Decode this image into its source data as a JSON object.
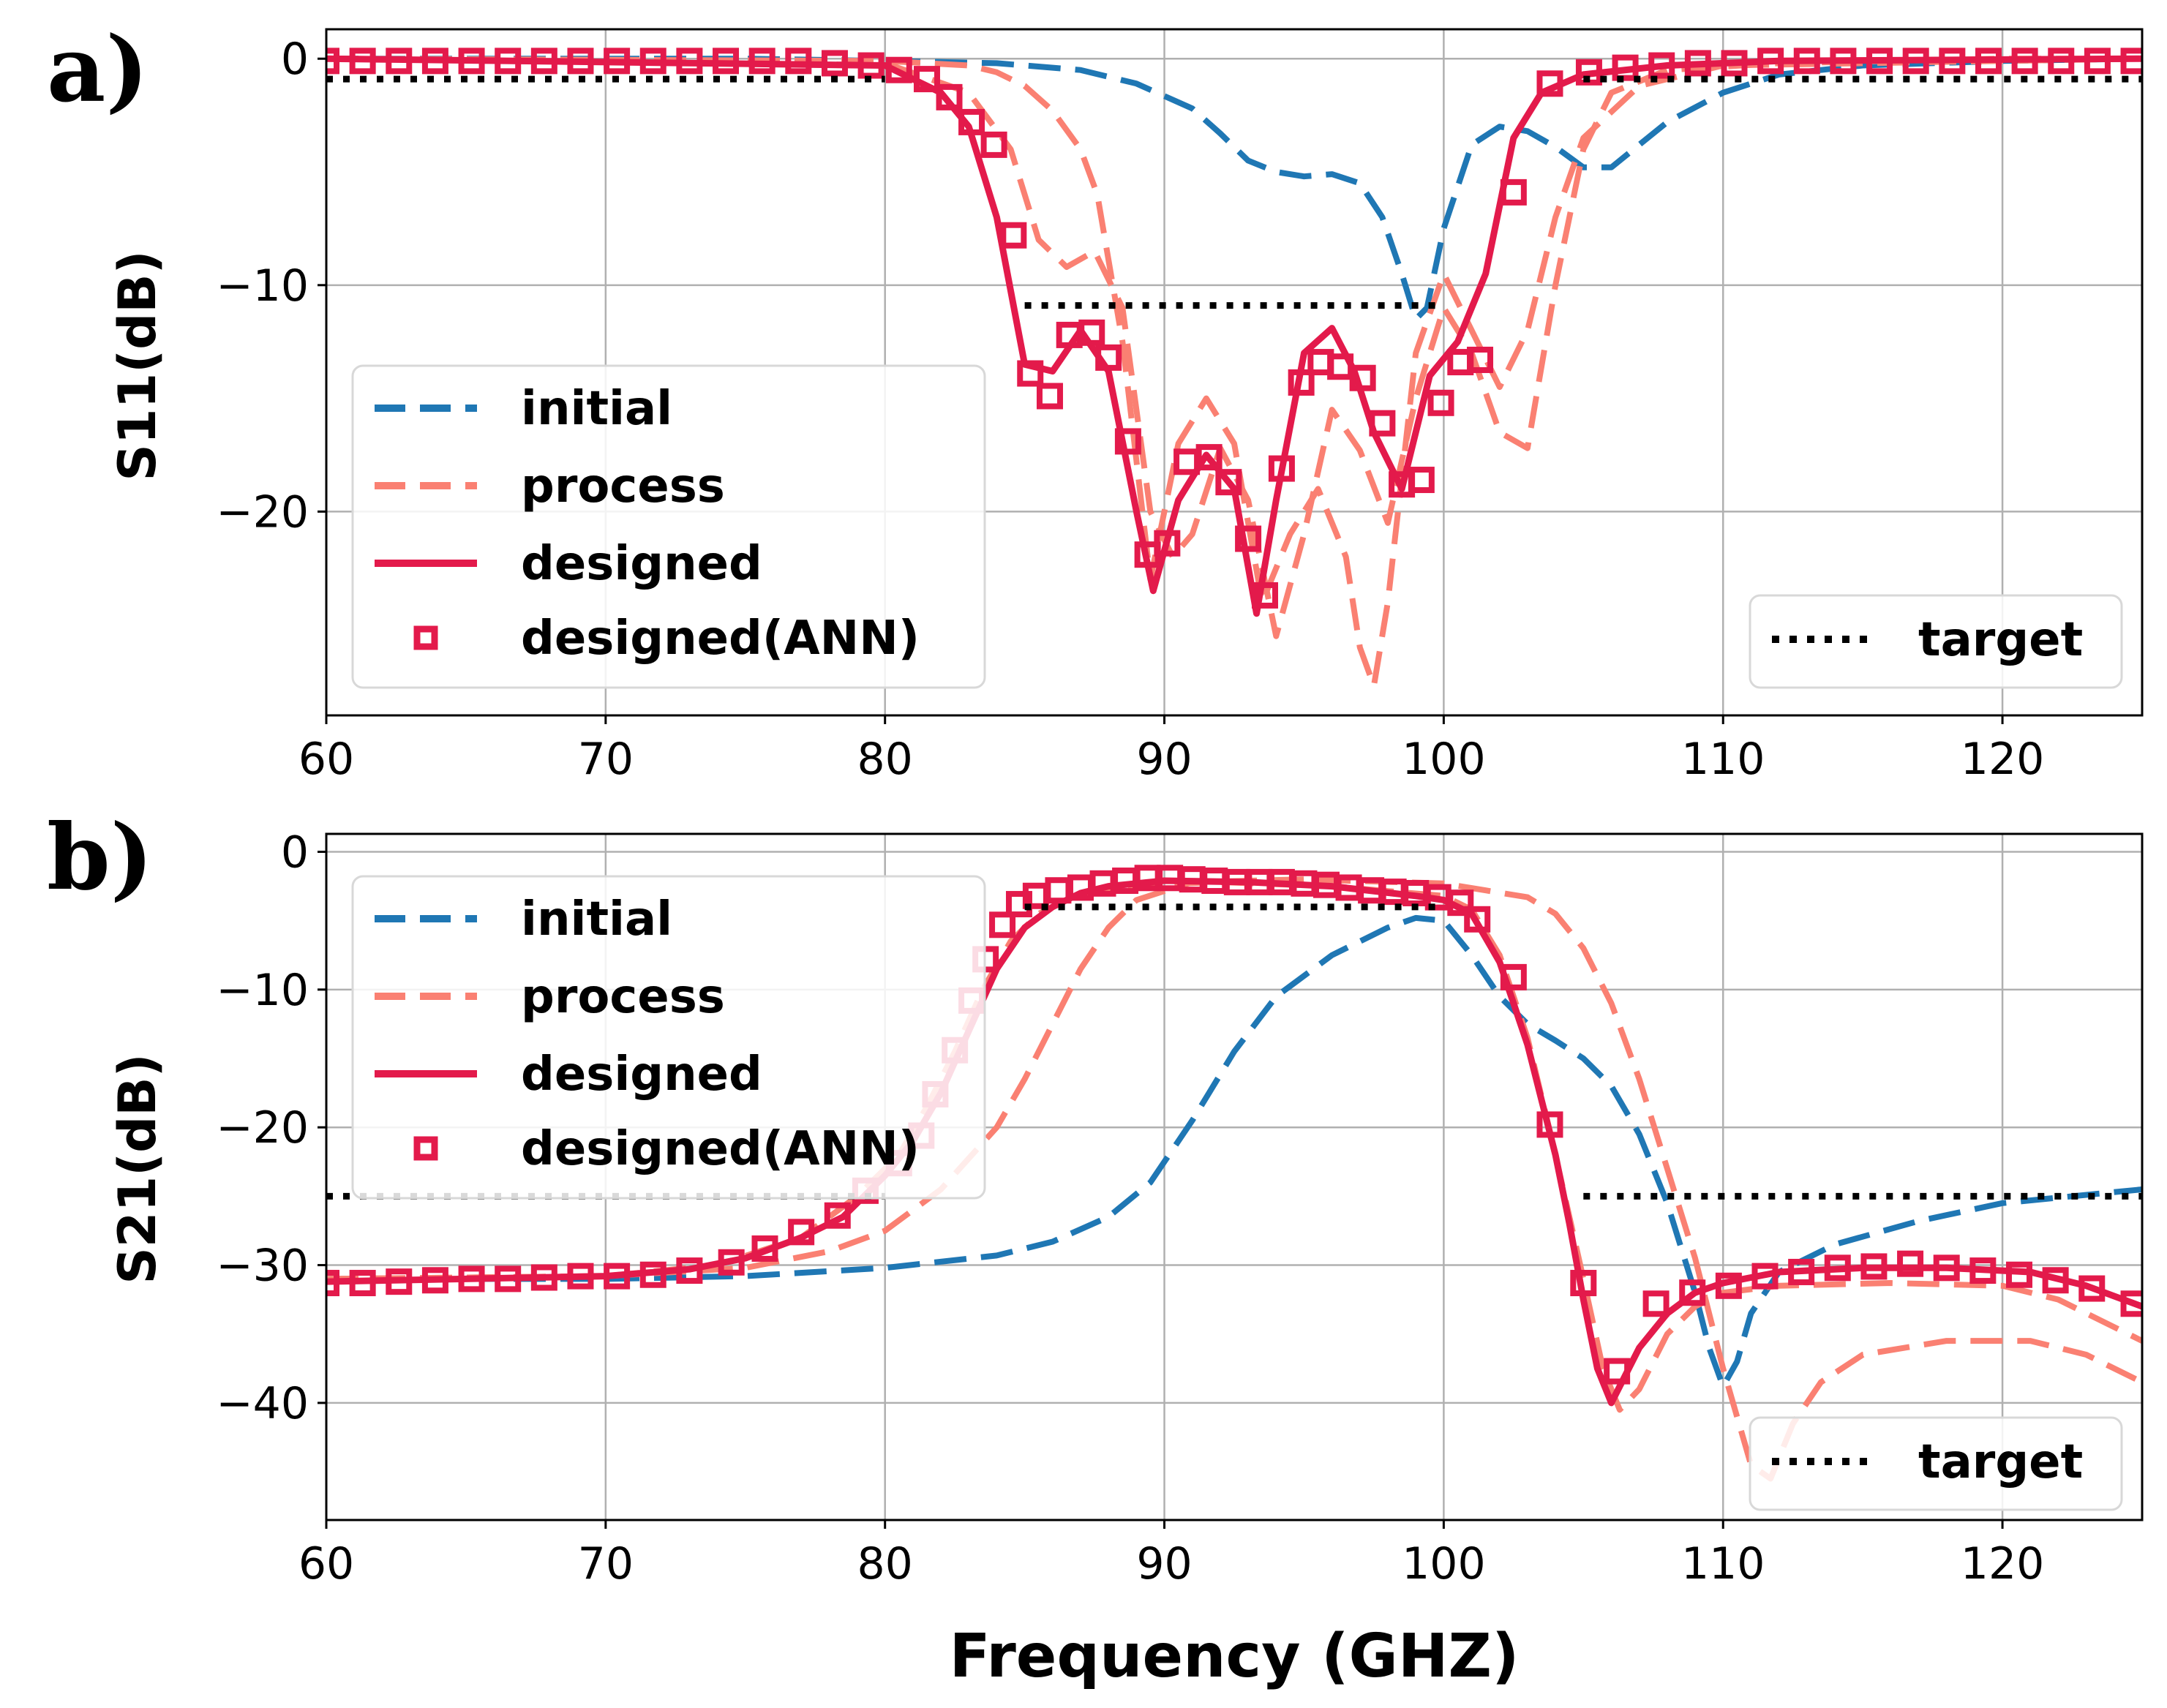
{
  "chart_data": [
    {
      "type": "line",
      "panel_label": "a)",
      "xlabel": "",
      "ylabel": "S11(dB)",
      "xlim": [
        60,
        125
      ],
      "ylim": [
        -29,
        1.3
      ],
      "xticks": [
        "60",
        "70",
        "80",
        "90",
        "100",
        "110",
        "120"
      ],
      "yticks": [
        "0",
        "−10",
        "−20"
      ],
      "grid": true,
      "legend": [
        "initial",
        "process",
        "designed",
        "designed(ANN)"
      ],
      "legend_target": "target",
      "legend_location": "lower-left",
      "target_legend_location": "lower-right",
      "series": [
        {
          "name": "initial",
          "color": "#1f77b4",
          "style": "dashed",
          "x": [
            60,
            75,
            80,
            84,
            87,
            89,
            91,
            92,
            93,
            94,
            95,
            96,
            97,
            97.8,
            98.5,
            99,
            99.4,
            100,
            101,
            102,
            103,
            104,
            105,
            106,
            108,
            110,
            112,
            115,
            120,
            125
          ],
          "y": [
            0,
            0,
            -0.1,
            -0.2,
            -0.5,
            -1.1,
            -2.2,
            -3.3,
            -4.5,
            -5,
            -5.2,
            -5.1,
            -5.5,
            -7,
            -9.5,
            -11.5,
            -11,
            -7.5,
            -3.8,
            -3,
            -3.2,
            -3.9,
            -4.8,
            -4.8,
            -2.8,
            -1.5,
            -0.7,
            -0.3,
            -0.1,
            0
          ]
        },
        {
          "name": "process 1",
          "color": "#fa8072",
          "style": "dashed",
          "x": [
            60,
            80,
            83,
            84.5,
            85.5,
            86.5,
            87.5,
            88.5,
            89.5,
            90.3,
            91,
            92,
            93,
            94,
            95,
            96,
            97,
            98,
            99,
            100,
            101,
            102,
            103,
            104,
            105,
            106,
            108,
            112,
            120,
            125
          ],
          "y": [
            0,
            -0.2,
            -1.5,
            -4,
            -8,
            -9.2,
            -8.5,
            -11,
            -20,
            -22,
            -21,
            -17.2,
            -19.5,
            -25.5,
            -21,
            -15.5,
            -17.3,
            -20.5,
            -15,
            -11,
            -13,
            -16.5,
            -17.2,
            -10,
            -4,
            -1.5,
            -0.5,
            -0.2,
            0,
            0
          ]
        },
        {
          "name": "process 2",
          "color": "#fa8072",
          "style": "dashed",
          "x": [
            60,
            80,
            83,
            84,
            85,
            86,
            87,
            87.6,
            88.5,
            89.5,
            90.5,
            91.5,
            92.5,
            93.5,
            94.5,
            95.5,
            96.5,
            97,
            97.5,
            98,
            99,
            100,
            101,
            102,
            103,
            104,
            105,
            107,
            110,
            125
          ],
          "y": [
            0,
            -0.1,
            -0.3,
            -0.6,
            -1.2,
            -2.3,
            -4,
            -6,
            -12.5,
            -23,
            -17,
            -15,
            -17,
            -24,
            -21,
            -19,
            -22,
            -26,
            -27.7,
            -24,
            -13,
            -9.5,
            -12,
            -14.5,
            -12,
            -7,
            -3.5,
            -1.2,
            -0.3,
            0
          ]
        },
        {
          "name": "designed",
          "color": "#e31a4b",
          "style": "solid",
          "x": [
            60,
            80,
            82,
            83,
            84,
            85,
            86,
            87,
            88,
            89,
            89.6,
            90.5,
            91.5,
            92.5,
            93.3,
            94,
            95,
            96,
            96.8,
            97.5,
            98.5,
            99.5,
            100.5,
            101.5,
            102.5,
            103.5,
            105,
            108,
            112,
            125
          ],
          "y": [
            0,
            -0.3,
            -1.5,
            -3,
            -7,
            -13.5,
            -13.8,
            -12,
            -13.8,
            -20,
            -23.5,
            -19.5,
            -17.5,
            -19,
            -24.5,
            -19.5,
            -13,
            -11.9,
            -13.8,
            -16.5,
            -19,
            -14,
            -12.5,
            -9.5,
            -3.5,
            -1.5,
            -0.7,
            -0.3,
            -0.1,
            0
          ]
        },
        {
          "name": "designed(ANN)",
          "color": "#e31a4b",
          "style": "markers",
          "x": [
            60,
            61.3,
            62.6,
            63.9,
            65.2,
            66.5,
            67.8,
            69.1,
            70.4,
            71.7,
            73,
            74.3,
            75.6,
            76.9,
            78.2,
            79.5,
            80.5,
            81.5,
            82.3,
            83.1,
            83.9,
            84.6,
            85.2,
            85.9,
            86.6,
            87.4,
            88,
            88.7,
            89.4,
            90.1,
            90.8,
            91.6,
            92.3,
            93,
            93.6,
            94.2,
            94.9,
            95.6,
            96.3,
            97.1,
            97.8,
            98.5,
            99.2,
            99.9,
            100.6,
            101.3,
            102.5,
            103.8,
            105.2,
            106.5,
            107.8,
            109.1,
            110.4,
            111.7,
            113,
            114.3,
            115.6,
            116.9,
            118.2,
            119.5,
            120.8,
            122.1,
            123.4,
            124.7
          ],
          "y": [
            -0.1,
            -0.1,
            -0.1,
            -0.1,
            -0.1,
            -0.1,
            -0.1,
            -0.1,
            -0.1,
            -0.1,
            -0.1,
            -0.1,
            -0.1,
            -0.1,
            -0.2,
            -0.3,
            -0.5,
            -0.9,
            -1.7,
            -2.8,
            -3.8,
            -7.8,
            -13.9,
            -14.9,
            -12.2,
            -12.1,
            -13.2,
            -16.9,
            -21.9,
            -21.4,
            -17.8,
            -17.6,
            -18.7,
            -21.2,
            -23.7,
            -18.1,
            -14.3,
            -13.4,
            -13.6,
            -14.1,
            -16.1,
            -18.8,
            -18.6,
            -15.2,
            -13.4,
            -13.3,
            -5.9,
            -1.1,
            -0.6,
            -0.4,
            -0.3,
            -0.2,
            -0.2,
            -0.1,
            -0.1,
            -0.1,
            -0.1,
            -0.1,
            -0.1,
            -0.1,
            -0.1,
            -0.1,
            -0.1,
            -0.1
          ]
        }
      ],
      "target_segments": [
        {
          "x": [
            60,
            80
          ],
          "y": [
            -0.9,
            -0.9
          ]
        },
        {
          "x": [
            85,
            100
          ],
          "y": [
            -10.9,
            -10.9
          ]
        },
        {
          "x": [
            105,
            125
          ],
          "y": [
            -0.9,
            -0.9
          ]
        }
      ]
    },
    {
      "type": "line",
      "panel_label": "b)",
      "xlabel": "Frequency (GHZ)",
      "ylabel": "S21(dB)",
      "xlim": [
        60,
        125
      ],
      "ylim": [
        -48.5,
        1.3
      ],
      "xticks": [
        "60",
        "70",
        "80",
        "90",
        "100",
        "110",
        "120"
      ],
      "yticks": [
        "0",
        "−10",
        "−20",
        "−30",
        "−40"
      ],
      "grid": true,
      "legend": [
        "initial",
        "process",
        "designed",
        "designed(ANN)"
      ],
      "legend_target": "target",
      "legend_location": "upper-left",
      "target_legend_location": "lower-right",
      "series": [
        {
          "name": "initial",
          "color": "#1f77b4",
          "style": "dashed",
          "x": [
            60,
            70,
            75,
            80,
            84,
            86,
            88,
            89.5,
            91,
            92.5,
            94,
            96,
            98,
            99,
            100,
            101,
            102,
            103,
            104,
            105,
            106,
            107,
            108,
            109,
            109.5,
            110,
            110.5,
            111,
            112,
            114,
            117,
            120,
            125
          ],
          "y": [
            -31,
            -31,
            -30.8,
            -30.2,
            -29.3,
            -28.3,
            -26.5,
            -24,
            -19.5,
            -14.5,
            -10.5,
            -7.5,
            -5.5,
            -4.8,
            -5,
            -7.5,
            -10.5,
            -12.5,
            -13.7,
            -15,
            -17,
            -20.5,
            -25.5,
            -32,
            -36,
            -38.8,
            -37,
            -33.5,
            -30.5,
            -28.5,
            -26.8,
            -25.5,
            -24.5
          ]
        },
        {
          "name": "process 1",
          "color": "#fa8072",
          "style": "dashed",
          "x": [
            60,
            70,
            75,
            78,
            80,
            82,
            84,
            85,
            86,
            87,
            88,
            89,
            91,
            95,
            100,
            103,
            104,
            105,
            106,
            107,
            108,
            109,
            110,
            111,
            111.7,
            112.5,
            113.5,
            115,
            118,
            121,
            123,
            125
          ],
          "y": [
            -31,
            -30.8,
            -30.2,
            -29,
            -27.5,
            -24.5,
            -20,
            -16.5,
            -12.5,
            -8.5,
            -5.5,
            -3.5,
            -2.2,
            -2.0,
            -2.3,
            -3.3,
            -4.5,
            -7,
            -11,
            -16.5,
            -23,
            -29.5,
            -37.5,
            -44.5,
            -45.5,
            -41.5,
            -38.5,
            -36.5,
            -35.5,
            -35.5,
            -36.5,
            -38.5
          ]
        },
        {
          "name": "process 2",
          "color": "#fa8072",
          "style": "dashed",
          "x": [
            60,
            70,
            74,
            77,
            79,
            80.5,
            81.5,
            82.5,
            83.5,
            84.5,
            85.5,
            87,
            89,
            92,
            96,
            100,
            101,
            102,
            103,
            104,
            105,
            105.7,
            106.3,
            107,
            108,
            109,
            110,
            112,
            116,
            120,
            122,
            125
          ],
          "y": [
            -31,
            -30.8,
            -30,
            -28,
            -25,
            -22,
            -18.5,
            -14.5,
            -10,
            -6.5,
            -4.5,
            -3,
            -2.4,
            -2.2,
            -2.5,
            -3.2,
            -4.2,
            -7.5,
            -13.5,
            -22,
            -31,
            -37.5,
            -40.5,
            -39,
            -35,
            -33,
            -32,
            -31.5,
            -31.3,
            -31.5,
            -32.5,
            -35.5
          ]
        },
        {
          "name": "designed",
          "color": "#e31a4b",
          "style": "solid",
          "x": [
            60,
            70,
            73,
            75,
            77,
            78.5,
            80,
            81,
            82,
            83,
            84,
            85,
            86,
            87,
            88,
            90,
            93,
            96,
            99,
            100,
            101,
            102,
            103,
            104,
            104.5,
            105,
            105.5,
            106,
            106.5,
            107,
            108,
            109,
            110,
            112,
            115,
            118,
            121,
            123,
            125
          ],
          "y": [
            -31.2,
            -30.8,
            -30.3,
            -29.5,
            -28,
            -26.5,
            -23.5,
            -21,
            -17.5,
            -13,
            -8.5,
            -5.5,
            -4,
            -3,
            -2.5,
            -2.1,
            -2.2,
            -2.5,
            -3.2,
            -3.5,
            -4.5,
            -8,
            -14,
            -22,
            -27,
            -32.5,
            -37.5,
            -40,
            -38,
            -36,
            -33.5,
            -32,
            -31.3,
            -30.5,
            -30.2,
            -30.2,
            -30.5,
            -31.5,
            -33
          ]
        },
        {
          "name": "designed(ANN)",
          "color": "#e31a4b",
          "style": "markers",
          "x": [
            60,
            61.3,
            62.6,
            63.9,
            65.2,
            66.5,
            67.8,
            69.1,
            70.4,
            71.7,
            73,
            74.5,
            75.7,
            77,
            78.3,
            79.3,
            80.5,
            81.3,
            81.8,
            82.5,
            83.1,
            83.6,
            84.2,
            84.8,
            85.4,
            86.2,
            87,
            87.8,
            88.6,
            89.4,
            90.2,
            91,
            91.8,
            92.6,
            93.4,
            94.2,
            95,
            95.8,
            96.6,
            97.4,
            98.2,
            99,
            99.8,
            100.6,
            101.2,
            102.5,
            103.8,
            105,
            106.2,
            107.6,
            108.9,
            110.2,
            111.5,
            112.8,
            114.1,
            115.4,
            116.7,
            118,
            119.3,
            120.6,
            121.9,
            123.2,
            124.7
          ],
          "y": [
            -31.3,
            -31.3,
            -31.2,
            -31.1,
            -31,
            -31,
            -30.9,
            -30.8,
            -30.8,
            -30.7,
            -30.4,
            -29.8,
            -28.8,
            -27.6,
            -26.4,
            -24.6,
            -22.6,
            -20.6,
            -17.6,
            -14.4,
            -10.8,
            -7.8,
            -5.3,
            -3.8,
            -3.2,
            -2.8,
            -2.6,
            -2.3,
            -2.1,
            -1.9,
            -1.9,
            -2,
            -2.1,
            -2.2,
            -2.2,
            -2.2,
            -2.3,
            -2.4,
            -2.6,
            -2.8,
            -2.9,
            -3,
            -3.3,
            -3.7,
            -4.9,
            -9.1,
            -19.8,
            -31.3,
            -37.7,
            -32.8,
            -32,
            -31.5,
            -30.8,
            -30.5,
            -30.2,
            -30.1,
            -29.9,
            -30.2,
            -30.4,
            -30.7,
            -31.1,
            -31.7,
            -32.8
          ]
        }
      ],
      "target_segments": [
        {
          "x": [
            60,
            80
          ],
          "y": [
            -25,
            -25
          ]
        },
        {
          "x": [
            85,
            100
          ],
          "y": [
            -4,
            -4
          ]
        },
        {
          "x": [
            105,
            125
          ],
          "y": [
            -25,
            -25
          ]
        }
      ]
    }
  ]
}
